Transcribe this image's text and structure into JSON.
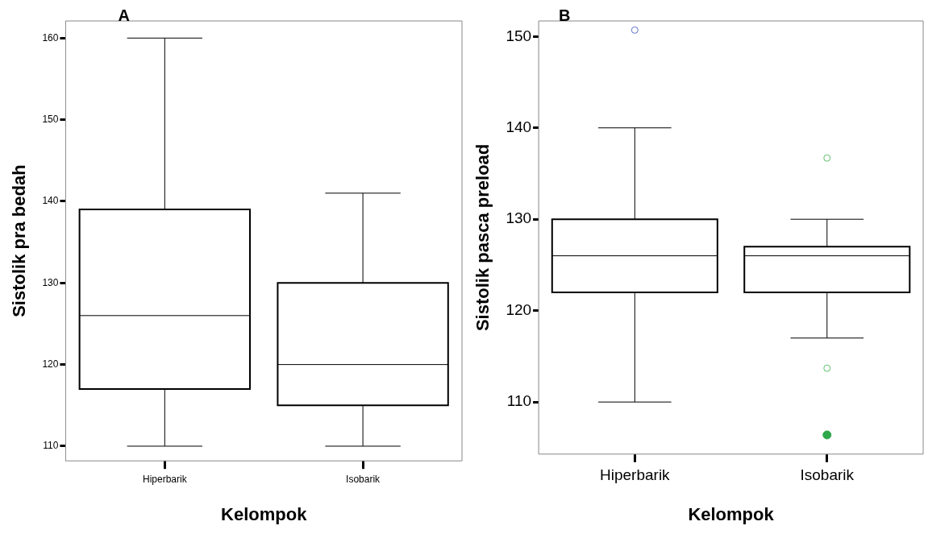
{
  "chart_data": [
    {
      "type": "box",
      "title": "A",
      "xlabel": "Kelompok",
      "ylabel": "Sistolik pra bedah",
      "categories": [
        "Hiperbarik",
        "Isobarik"
      ],
      "ylim": [
        108.2,
        162.1
      ],
      "yticks": [
        110,
        120,
        130,
        140,
        150,
        160
      ],
      "grid": false,
      "series": [
        {
          "type": "box",
          "color": "#000000",
          "boxes": [
            {
              "low": 110,
              "q1": 117,
              "median": 126,
              "q3": 139,
              "high": 160
            },
            {
              "low": 110,
              "q1": 115,
              "median": 120,
              "q3": 130,
              "high": 141
            }
          ]
        }
      ]
    },
    {
      "type": "box",
      "title": "B",
      "xlabel": "Kelompok",
      "ylabel": "Sistolik pasca preload",
      "categories": [
        "Hiperbarik",
        "Isobarik"
      ],
      "ylim": [
        104.3,
        151.7
      ],
      "yticks": [
        110,
        120,
        130,
        140,
        150
      ],
      "grid": false,
      "marker": "circle",
      "colors": [
        "#5b70d0",
        "#5cbf6c"
      ],
      "series": [
        {
          "type": "box",
          "color": "#000000",
          "boxes": [
            {
              "low": 110,
              "q1": 122,
              "median": 126,
              "q3": 130,
              "high": 140,
              "outliers": [
                150.7
              ]
            },
            {
              "low": 117,
              "q1": 122,
              "median": 126,
              "q3": 127,
              "high": 130,
              "outliers": [
                136.7,
                113.7
              ]
            }
          ]
        },
        {
          "type": "scatter",
          "color": "#2ea84a",
          "x": [
            "Isobarik"
          ],
          "values": [
            106.4
          ]
        }
      ]
    }
  ]
}
